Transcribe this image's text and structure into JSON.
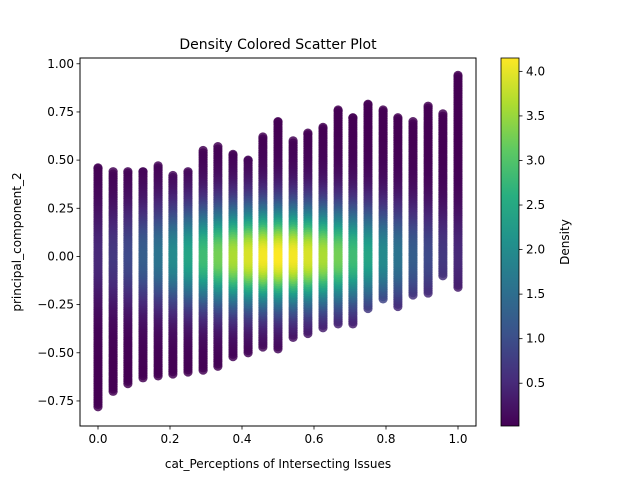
{
  "chart_data": {
    "type": "scatter",
    "title": "Density Colored Scatter Plot",
    "xlabel": "cat_Perceptions of Intersecting Issues",
    "ylabel": "principal_component_2",
    "xlim": [
      -0.05,
      1.05
    ],
    "ylim": [
      -0.88,
      1.03
    ],
    "xticks": [
      0.0,
      0.2,
      0.4,
      0.6,
      0.8,
      1.0
    ],
    "xtick_labels": [
      "0.0",
      "0.2",
      "0.4",
      "0.6",
      "0.8",
      "1.0"
    ],
    "yticks": [
      -0.75,
      -0.5,
      -0.25,
      0.0,
      0.25,
      0.5,
      0.75,
      1.0
    ],
    "ytick_labels": [
      "−0.75",
      "−0.50",
      "−0.25",
      "0.00",
      "0.25",
      "0.50",
      "0.75",
      "1.00"
    ],
    "colorbar": {
      "label": "Density",
      "colormap": "viridis",
      "range": [
        0.02,
        4.15
      ],
      "ticks": [
        0.5,
        1.0,
        1.5,
        2.0,
        2.5,
        3.0,
        3.5,
        4.0
      ],
      "tick_labels": [
        "0.5",
        "1.0",
        "1.5",
        "2.0",
        "2.5",
        "3.0",
        "3.5",
        "4.0"
      ]
    },
    "columns": [
      {
        "x": 0.0,
        "ymin": -0.78,
        "ymax": 0.46
      },
      {
        "x": 0.042,
        "ymin": -0.7,
        "ymax": 0.44
      },
      {
        "x": 0.083,
        "ymin": -0.66,
        "ymax": 0.44
      },
      {
        "x": 0.125,
        "ymin": -0.63,
        "ymax": 0.44
      },
      {
        "x": 0.167,
        "ymin": -0.62,
        "ymax": 0.47
      },
      {
        "x": 0.208,
        "ymin": -0.61,
        "ymax": 0.42
      },
      {
        "x": 0.25,
        "ymin": -0.6,
        "ymax": 0.44
      },
      {
        "x": 0.292,
        "ymin": -0.59,
        "ymax": 0.55
      },
      {
        "x": 0.333,
        "ymin": -0.57,
        "ymax": 0.57
      },
      {
        "x": 0.375,
        "ymin": -0.52,
        "ymax": 0.53
      },
      {
        "x": 0.417,
        "ymin": -0.5,
        "ymax": 0.5
      },
      {
        "x": 0.458,
        "ymin": -0.47,
        "ymax": 0.62
      },
      {
        "x": 0.5,
        "ymin": -0.48,
        "ymax": 0.7
      },
      {
        "x": 0.542,
        "ymin": -0.42,
        "ymax": 0.6
      },
      {
        "x": 0.583,
        "ymin": -0.4,
        "ymax": 0.64
      },
      {
        "x": 0.625,
        "ymin": -0.37,
        "ymax": 0.67
      },
      {
        "x": 0.667,
        "ymin": -0.35,
        "ymax": 0.76
      },
      {
        "x": 0.708,
        "ymin": -0.35,
        "ymax": 0.72
      },
      {
        "x": 0.75,
        "ymin": -0.27,
        "ymax": 0.79
      },
      {
        "x": 0.792,
        "ymin": -0.22,
        "ymax": 0.76
      },
      {
        "x": 0.833,
        "ymin": -0.26,
        "ymax": 0.72
      },
      {
        "x": 0.875,
        "ymin": -0.2,
        "ymax": 0.7
      },
      {
        "x": 0.917,
        "ymin": -0.19,
        "ymax": 0.78
      },
      {
        "x": 0.958,
        "ymin": -0.1,
        "ymax": 0.74
      },
      {
        "x": 1.0,
        "ymin": -0.16,
        "ymax": 0.94
      }
    ],
    "density_peak": {
      "x": 0.5,
      "y": 0.0,
      "value": 4.15
    },
    "grid": false,
    "legend": "colorbar-right"
  }
}
